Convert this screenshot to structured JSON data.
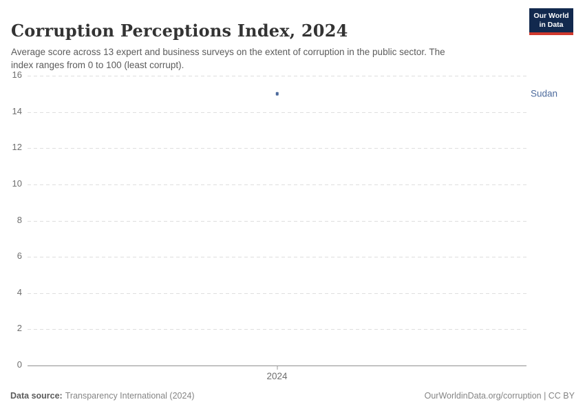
{
  "header": {
    "title": "Corruption Perceptions Index, 2024",
    "subtitle": "Average score across 13 expert and business surveys on the extent of corruption in the public sector. The\nindex ranges from 0 to 100 (least corrupt)."
  },
  "logo": {
    "line1": "Our World",
    "line2": "in Data",
    "bg_color": "#12294e",
    "bar_color": "#d0392e"
  },
  "chart_data": {
    "type": "scatter",
    "title": "Corruption Perceptions Index, 2024",
    "xlabel": "",
    "ylabel": "",
    "xticks": [
      "2024"
    ],
    "ylim": [
      0,
      16
    ],
    "yticks": [
      0,
      2,
      4,
      6,
      8,
      10,
      12,
      14,
      16
    ],
    "grid": true,
    "gridline_color": "#dedede",
    "axis_color": "#8f8f8f",
    "series": [
      {
        "name": "Sudan",
        "color": "#4c6a9c",
        "points": [
          {
            "x": 2024,
            "y": 15
          }
        ]
      }
    ]
  },
  "footer": {
    "source_label": "Data source:",
    "source_value": "Transparency International (2024)",
    "link_text": "OurWorldinData.org/corruption | CC BY"
  }
}
